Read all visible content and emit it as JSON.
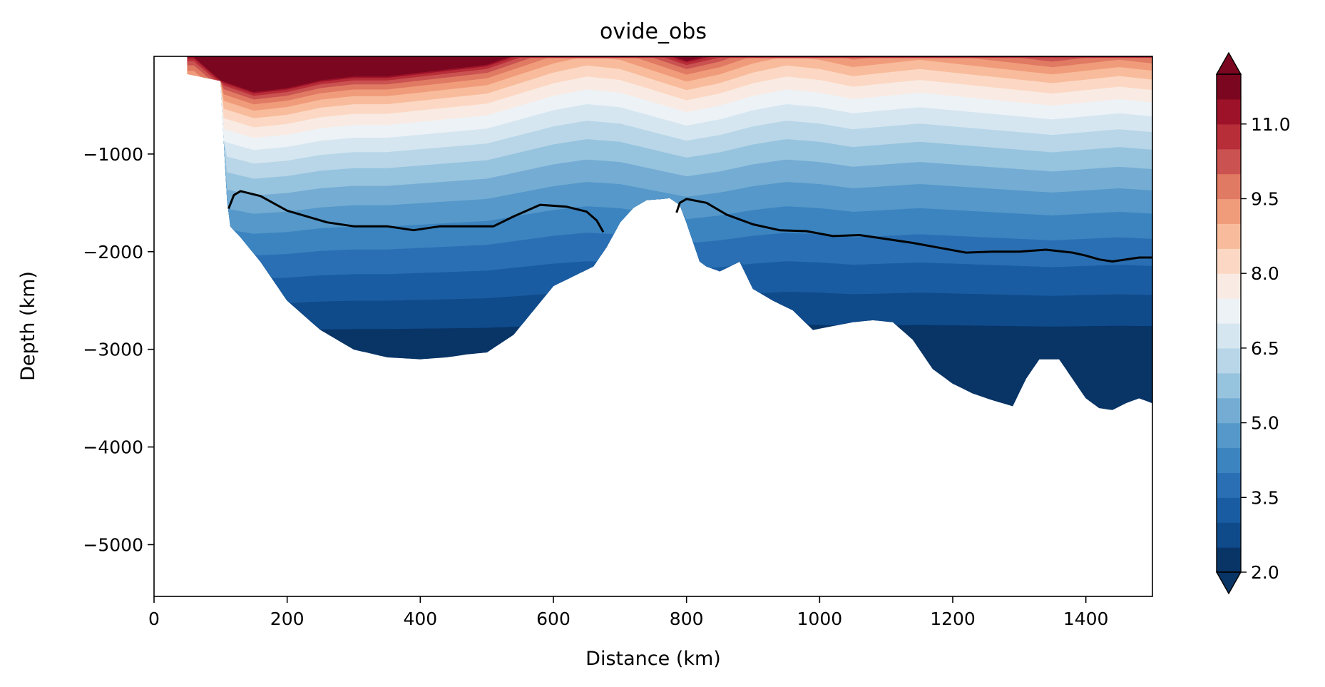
{
  "chart_data": {
    "type": "heatmap",
    "title": "ovide_obs",
    "xlabel": "Distance (km)",
    "ylabel": "Depth (km)",
    "xlim": [
      0,
      1500
    ],
    "ylim": [
      -5530,
      0
    ],
    "x_ticks": [
      0,
      200,
      400,
      600,
      800,
      1000,
      1200,
      1400
    ],
    "y_ticks": [
      -1000,
      -2000,
      -3000,
      -4000,
      -5000
    ],
    "grid": false,
    "colormap": "RdBu_r",
    "colorbar": {
      "range": [
        2.0,
        12.0
      ],
      "levels": [
        2.0,
        2.5,
        3.0,
        3.5,
        4.0,
        4.5,
        5.0,
        5.5,
        6.0,
        6.5,
        7.0,
        7.5,
        8.0,
        8.5,
        9.0,
        9.5,
        10.0,
        10.5,
        11.0,
        11.5,
        12.0
      ],
      "tick_values": [
        2.0,
        3.5,
        5.0,
        6.5,
        8.0,
        9.5,
        11.0
      ],
      "tick_labels": [
        "2.0",
        "3.5",
        "5.0",
        "6.5",
        "8.0",
        "9.5",
        "11.0"
      ],
      "extend": "both",
      "colors": [
        "#083466",
        "#0f4a8a",
        "#1a5ca1",
        "#2a6fb3",
        "#3b84c0",
        "#5598c9",
        "#74acd3",
        "#96c3de",
        "#b8d6e8",
        "#d5e6f0",
        "#edf2f6",
        "#f9ebe3",
        "#fcd8c4",
        "#f8bc9c",
        "#f09c7b",
        "#e07a63",
        "#ca5250",
        "#b72d38",
        "#9d1229",
        "#7b061f"
      ]
    },
    "isoline": {
      "color": "#000000",
      "segments": [
        {
          "x": [
            112,
            120,
            130,
            160,
            200,
            260,
            300,
            350,
            390,
            430,
            480,
            510,
            540,
            580,
            620,
            650,
            665,
            675
          ],
          "y": [
            -1560,
            -1420,
            -1380,
            -1430,
            -1580,
            -1700,
            -1740,
            -1740,
            -1780,
            -1740,
            -1740,
            -1740,
            -1640,
            -1520,
            -1540,
            -1590,
            -1680,
            -1800
          ]
        },
        {
          "x": [
            785,
            790,
            800,
            830,
            860,
            900,
            940,
            980,
            1020,
            1060,
            1100,
            1140,
            1180,
            1220,
            1260,
            1300,
            1340,
            1380,
            1400,
            1420,
            1440,
            1480,
            1500
          ],
          "y": [
            -1600,
            -1500,
            -1460,
            -1500,
            -1620,
            -1720,
            -1780,
            -1790,
            -1840,
            -1830,
            -1870,
            -1910,
            -1960,
            -2010,
            -2000,
            -2000,
            -1980,
            -2010,
            -2040,
            -2080,
            -2100,
            -2060,
            -2060
          ]
        }
      ]
    },
    "bathymetry_km": {
      "x": [
        50,
        100,
        112,
        130,
        160,
        200,
        250,
        300,
        350,
        400,
        440,
        470,
        500,
        540,
        570,
        600,
        630,
        660,
        680,
        700,
        720,
        740,
        760,
        775,
        790,
        800,
        810,
        820,
        830,
        850,
        880,
        900,
        930,
        960,
        990,
        1020,
        1050,
        1080,
        1110,
        1140,
        1170,
        1200,
        1230,
        1260,
        1290,
        1310,
        1330,
        1360,
        1380,
        1400,
        1420,
        1440,
        1460,
        1480,
        1500
      ],
      "y": [
        -180,
        -250,
        -1720,
        -1850,
        -2100,
        -2500,
        -2800,
        -3000,
        -3080,
        -3100,
        -3080,
        -3050,
        -3030,
        -2850,
        -2600,
        -2350,
        -2250,
        -2150,
        -1950,
        -1700,
        -1550,
        -1470,
        -1460,
        -1450,
        -1520,
        -1700,
        -1900,
        -2100,
        -2150,
        -2200,
        -2100,
        -2380,
        -2500,
        -2600,
        -2800,
        -2760,
        -2720,
        -2700,
        -2720,
        -2900,
        -3200,
        -3350,
        -3450,
        -3520,
        -3580,
        -3300,
        -3100,
        -3100,
        -3300,
        -3500,
        -3600,
        -3620,
        -3550,
        -3500,
        -3550
      ]
    },
    "surface_pattern_km": {
      "x": [
        60,
        100,
        150,
        200,
        250,
        300,
        350,
        400,
        450,
        500,
        550,
        600,
        650,
        700,
        750,
        800,
        850,
        900,
        950,
        1000,
        1050,
        1100,
        1150,
        1200,
        1250,
        1300,
        1350,
        1400,
        1450,
        1500
      ],
      "offset_m": [
        0,
        -60,
        -90,
        -80,
        -60,
        -50,
        -50,
        -40,
        -30,
        -20,
        10,
        40,
        60,
        50,
        20,
        -10,
        10,
        40,
        60,
        50,
        30,
        40,
        50,
        40,
        30,
        20,
        10,
        20,
        30,
        20
      ]
    }
  }
}
